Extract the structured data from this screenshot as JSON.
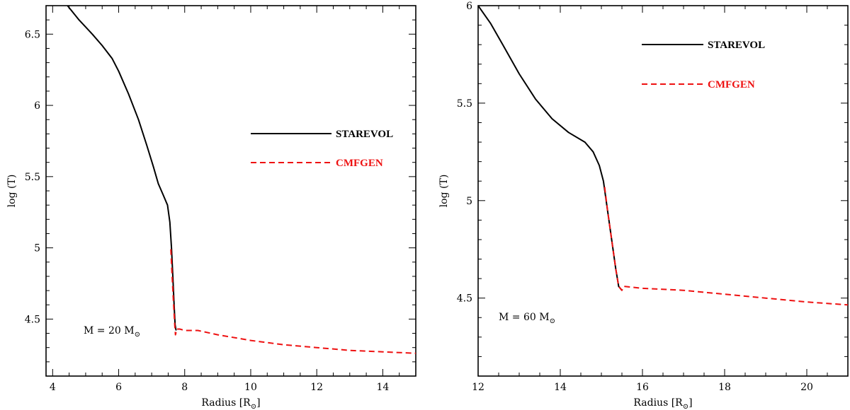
{
  "colors": {
    "starevol": "#000000",
    "cmfgen": "#ee1111"
  },
  "chart_data": [
    {
      "type": "line",
      "xlabel": "Radius [R",
      "xlabel_sub": "⊙",
      "xlabel_close": "]",
      "ylabel": "log (T)",
      "xlim": [
        3.8,
        15
      ],
      "ylim": [
        4.1,
        6.7
      ],
      "xticks": [
        4,
        6,
        8,
        10,
        12,
        14
      ],
      "yticks": [
        4.5,
        5,
        5.5,
        6,
        6.5
      ],
      "annotation": {
        "text": "M = 20 M",
        "sub": "⊙"
      },
      "legend": {
        "position": "upper-right-center",
        "entries": [
          "STAREVOL",
          "CMFGEN"
        ]
      },
      "series": [
        {
          "name": "STAREVOL",
          "style": "solid",
          "points": [
            [
              4.45,
              6.7
            ],
            [
              4.8,
              6.6
            ],
            [
              5.2,
              6.5
            ],
            [
              5.5,
              6.42
            ],
            [
              5.8,
              6.33
            ],
            [
              6.0,
              6.24
            ],
            [
              6.3,
              6.08
            ],
            [
              6.6,
              5.9
            ],
            [
              6.85,
              5.72
            ],
            [
              7.05,
              5.57
            ],
            [
              7.2,
              5.45
            ],
            [
              7.35,
              5.37
            ],
            [
              7.48,
              5.3
            ],
            [
              7.55,
              5.18
            ],
            [
              7.6,
              5.0
            ],
            [
              7.64,
              4.8
            ],
            [
              7.68,
              4.6
            ],
            [
              7.71,
              4.46
            ],
            [
              7.74,
              4.42
            ]
          ]
        },
        {
          "name": "CMFGEN",
          "style": "dashed",
          "points": [
            [
              7.58,
              4.99
            ],
            [
              7.62,
              4.8
            ],
            [
              7.66,
              4.62
            ],
            [
              7.7,
              4.45
            ],
            [
              7.72,
              4.39
            ],
            [
              7.76,
              4.43
            ],
            [
              7.85,
              4.43
            ],
            [
              8.0,
              4.42
            ],
            [
              8.4,
              4.42
            ],
            [
              9.0,
              4.39
            ],
            [
              10.0,
              4.35
            ],
            [
              11.0,
              4.32
            ],
            [
              12.0,
              4.3
            ],
            [
              13.0,
              4.28
            ],
            [
              14.0,
              4.27
            ],
            [
              15.0,
              4.26
            ]
          ]
        }
      ]
    },
    {
      "type": "line",
      "xlabel": "Radius [R",
      "xlabel_sub": "⊙",
      "xlabel_close": "]",
      "ylabel": "log (T)",
      "xlim": [
        12,
        21
      ],
      "ylim": [
        4.1,
        6
      ],
      "xticks": [
        12,
        14,
        16,
        18,
        20
      ],
      "yticks": [
        4.5,
        5,
        5.5,
        6
      ],
      "annotation": {
        "text": "M = 60 M",
        "sub": "⊙"
      },
      "legend": {
        "position": "upper-right-center",
        "entries": [
          "STAREVOL",
          "CMFGEN"
        ]
      },
      "series": [
        {
          "name": "STAREVOL",
          "style": "solid",
          "points": [
            [
              12.0,
              6.0
            ],
            [
              12.3,
              5.91
            ],
            [
              12.6,
              5.8
            ],
            [
              13.0,
              5.65
            ],
            [
              13.4,
              5.52
            ],
            [
              13.8,
              5.42
            ],
            [
              14.2,
              5.35
            ],
            [
              14.6,
              5.3
            ],
            [
              14.8,
              5.25
            ],
            [
              14.95,
              5.18
            ],
            [
              15.05,
              5.1
            ],
            [
              15.15,
              4.95
            ],
            [
              15.25,
              4.8
            ],
            [
              15.35,
              4.65
            ],
            [
              15.42,
              4.56
            ],
            [
              15.5,
              4.54
            ]
          ]
        },
        {
          "name": "CMFGEN",
          "style": "dashed",
          "points": [
            [
              15.08,
              5.07
            ],
            [
              15.15,
              4.95
            ],
            [
              15.25,
              4.8
            ],
            [
              15.35,
              4.65
            ],
            [
              15.42,
              4.56
            ],
            [
              15.5,
              4.54
            ],
            [
              15.55,
              4.56
            ],
            [
              16.0,
              4.55
            ],
            [
              17.0,
              4.54
            ],
            [
              18.0,
              4.52
            ],
            [
              19.0,
              4.5
            ],
            [
              20.0,
              4.48
            ],
            [
              21.0,
              4.465
            ]
          ]
        }
      ]
    }
  ]
}
